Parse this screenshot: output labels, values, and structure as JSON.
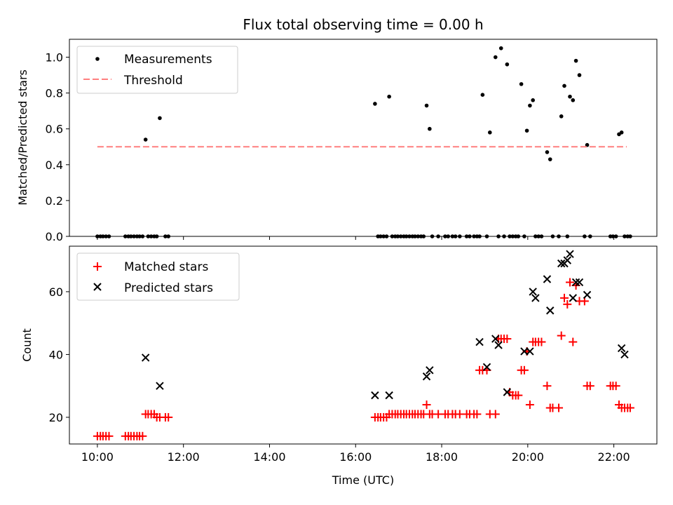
{
  "chart_data": [
    {
      "type": "scatter",
      "title": "Flux total observing time = 0.00 h",
      "xlabel": "",
      "ylabel": "Matched/Predicted stars",
      "xlim": [
        9.35,
        23.0
      ],
      "ylim": [
        0,
        1.1
      ],
      "x_ticks": [
        10,
        12,
        14,
        16,
        18,
        20,
        22
      ],
      "x_ticks_labelled": false,
      "y_ticks": [
        0.0,
        0.2,
        0.4,
        0.6,
        0.8,
        1.0
      ],
      "y_tick_labels": [
        "0.0",
        "0.2",
        "0.4",
        "0.6",
        "0.8",
        "1.0"
      ],
      "legend_position": "top-left",
      "series": [
        {
          "name": "Measurements",
          "marker": "dot",
          "color": "#000000",
          "x": [
            10.0,
            10.07,
            10.13,
            10.2,
            10.27,
            10.65,
            10.72,
            10.78,
            10.85,
            10.92,
            10.98,
            11.05,
            11.12,
            11.18,
            11.25,
            11.32,
            11.38,
            11.45,
            11.58,
            11.65,
            16.45,
            16.52,
            16.58,
            16.65,
            16.72,
            16.78,
            16.85,
            16.92,
            16.98,
            17.05,
            17.12,
            17.18,
            17.25,
            17.32,
            17.38,
            17.45,
            17.52,
            17.58,
            17.65,
            17.72,
            17.78,
            17.92,
            18.08,
            18.15,
            18.25,
            18.32,
            18.42,
            18.58,
            18.65,
            18.75,
            18.82,
            18.88,
            18.95,
            19.05,
            19.12,
            19.25,
            19.32,
            19.38,
            19.45,
            19.52,
            19.58,
            19.65,
            19.72,
            19.78,
            19.85,
            19.92,
            19.98,
            20.05,
            20.12,
            20.18,
            20.25,
            20.32,
            20.45,
            20.52,
            20.58,
            20.72,
            20.78,
            20.85,
            20.92,
            20.98,
            21.05,
            21.12,
            21.2,
            21.32,
            21.38,
            21.45,
            21.92,
            21.98,
            22.05,
            22.12,
            22.18,
            22.25,
            22.32,
            22.38
          ],
          "y": [
            0,
            0,
            0,
            0,
            0,
            0,
            0,
            0,
            0,
            0,
            0,
            0,
            0.54,
            0,
            0,
            0,
            0,
            0.66,
            0,
            0,
            0.74,
            0,
            0,
            0,
            0,
            0.78,
            0,
            0,
            0,
            0,
            0,
            0,
            0,
            0,
            0,
            0,
            0,
            0,
            0.73,
            0.6,
            0,
            0,
            0,
            0,
            0,
            0,
            0,
            0,
            0,
            0,
            0,
            0,
            0.79,
            0,
            0.58,
            1.0,
            0,
            1.05,
            0,
            0.96,
            0,
            0,
            0,
            0,
            0.85,
            0,
            0.59,
            0.73,
            0.76,
            0,
            0,
            0,
            0.47,
            0.43,
            0,
            0,
            0.67,
            0.84,
            0,
            0.78,
            0.76,
            0.98,
            0.9,
            0,
            0.51,
            0,
            0,
            0,
            0,
            0.57,
            0.58,
            0,
            0,
            0
          ]
        },
        {
          "name": "Threshold",
          "line": "dashed",
          "color": "#ff7f7f",
          "x": [
            10.0,
            22.3
          ],
          "y": [
            0.5,
            0.5
          ]
        }
      ]
    },
    {
      "type": "scatter",
      "title": "",
      "xlabel": "Time (UTC)",
      "ylabel": "Count",
      "xlim": [
        9.35,
        23.0
      ],
      "ylim": [
        11.5,
        74.5
      ],
      "x_ticks": [
        10,
        12,
        14,
        16,
        18,
        20,
        22
      ],
      "x_tick_labels": [
        "10:00",
        "12:00",
        "14:00",
        "16:00",
        "18:00",
        "20:00",
        "22:00"
      ],
      "y_ticks": [
        20,
        40,
        60
      ],
      "y_tick_labels": [
        "20",
        "40",
        "60"
      ],
      "legend_position": "top-left",
      "series": [
        {
          "name": "Matched stars",
          "marker": "plus",
          "color": "#ff0000",
          "x": [
            10.0,
            10.07,
            10.13,
            10.2,
            10.27,
            10.65,
            10.72,
            10.78,
            10.85,
            10.92,
            10.98,
            11.05,
            11.12,
            11.18,
            11.25,
            11.32,
            11.38,
            11.45,
            11.58,
            11.65,
            16.45,
            16.52,
            16.58,
            16.65,
            16.72,
            16.78,
            16.85,
            16.92,
            16.98,
            17.05,
            17.12,
            17.18,
            17.25,
            17.32,
            17.38,
            17.45,
            17.52,
            17.58,
            17.65,
            17.72,
            17.78,
            17.92,
            18.08,
            18.15,
            18.25,
            18.32,
            18.42,
            18.58,
            18.65,
            18.75,
            18.82,
            18.88,
            18.95,
            19.05,
            19.12,
            19.25,
            19.32,
            19.38,
            19.45,
            19.52,
            19.58,
            19.65,
            19.72,
            19.78,
            19.85,
            19.92,
            19.98,
            20.05,
            20.12,
            20.18,
            20.25,
            20.32,
            20.45,
            20.52,
            20.58,
            20.72,
            20.78,
            20.85,
            20.92,
            20.98,
            21.05,
            21.12,
            21.2,
            21.32,
            21.38,
            21.45,
            21.92,
            21.98,
            22.05,
            22.12,
            22.18,
            22.25,
            22.32,
            22.38
          ],
          "y": [
            14,
            14,
            14,
            14,
            14,
            14,
            14,
            14,
            14,
            14,
            14,
            14,
            21,
            21,
            21,
            21,
            20,
            20,
            20,
            20,
            20,
            20,
            20,
            20,
            20,
            21,
            21,
            21,
            21,
            21,
            21,
            21,
            21,
            21,
            21,
            21,
            21,
            21,
            24,
            21,
            21,
            21,
            21,
            21,
            21,
            21,
            21,
            21,
            21,
            21,
            21,
            35,
            35,
            35,
            21,
            21,
            45,
            45,
            45,
            45,
            28,
            27,
            27,
            27,
            35,
            35,
            41,
            24,
            44,
            44,
            44,
            44,
            30,
            23,
            23,
            23,
            46,
            58,
            56,
            63,
            44,
            62,
            57,
            57,
            30,
            30,
            30,
            30,
            30,
            24,
            23,
            23,
            23,
            23
          ]
        },
        {
          "name": "Predicted stars",
          "marker": "x",
          "color": "#000000",
          "x": [
            11.12,
            11.45,
            16.45,
            16.78,
            17.65,
            17.72,
            18.88,
            19.05,
            19.25,
            19.32,
            19.52,
            19.92,
            20.05,
            20.12,
            20.18,
            20.45,
            20.52,
            20.78,
            20.85,
            20.92,
            20.98,
            21.05,
            21.12,
            21.2,
            21.38,
            22.18,
            22.25
          ],
          "y": [
            39,
            30,
            27,
            27,
            33,
            35,
            44,
            36,
            45,
            43,
            28,
            41,
            41,
            60,
            58,
            64,
            54,
            69,
            69,
            70,
            72,
            58,
            63,
            63,
            59,
            42,
            40
          ]
        }
      ]
    }
  ]
}
